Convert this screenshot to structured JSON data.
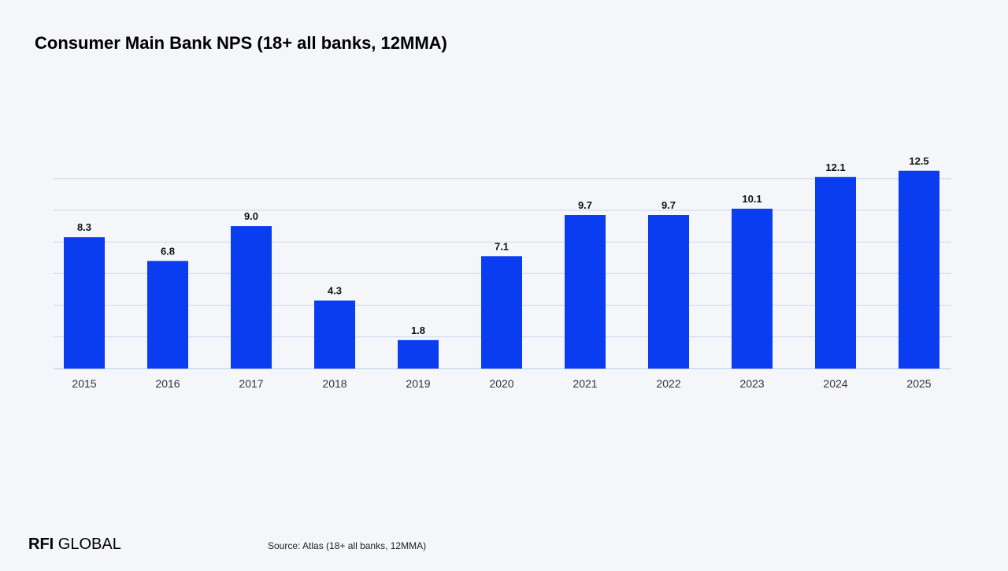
{
  "slide": {
    "title": "Consumer Main Bank NPS (18+ all banks, 12MMA)",
    "source": "Source: Atlas (18+ all banks, 12MMA)",
    "logo_part1": "RFI",
    "logo_part2": " GLOBAL"
  },
  "colors": {
    "bar": "#0a3cf0",
    "grid": "#c9d8ea",
    "label": "#111111",
    "tick": "#333333"
  },
  "chart_data": {
    "type": "bar",
    "categories": [
      "2015",
      "2016",
      "2017",
      "2018",
      "2019",
      "2020",
      "2021",
      "2022",
      "2023",
      "2024",
      "2025"
    ],
    "values": [
      8.3,
      6.8,
      9.0,
      4.3,
      1.8,
      7.1,
      9.7,
      9.7,
      10.1,
      12.1,
      12.5
    ],
    "data_labels": [
      "8.3",
      "6.8",
      "9.0",
      "4.3",
      "1.8",
      "7.1",
      "9.7",
      "9.7",
      "10.1",
      "12.1",
      "12.5"
    ],
    "title": "Consumer Main Bank NPS (18+ all banks, 12MMA)",
    "xlabel": "",
    "ylabel": "",
    "ylim": [
      0,
      13
    ],
    "grid": true,
    "legend": "none"
  }
}
